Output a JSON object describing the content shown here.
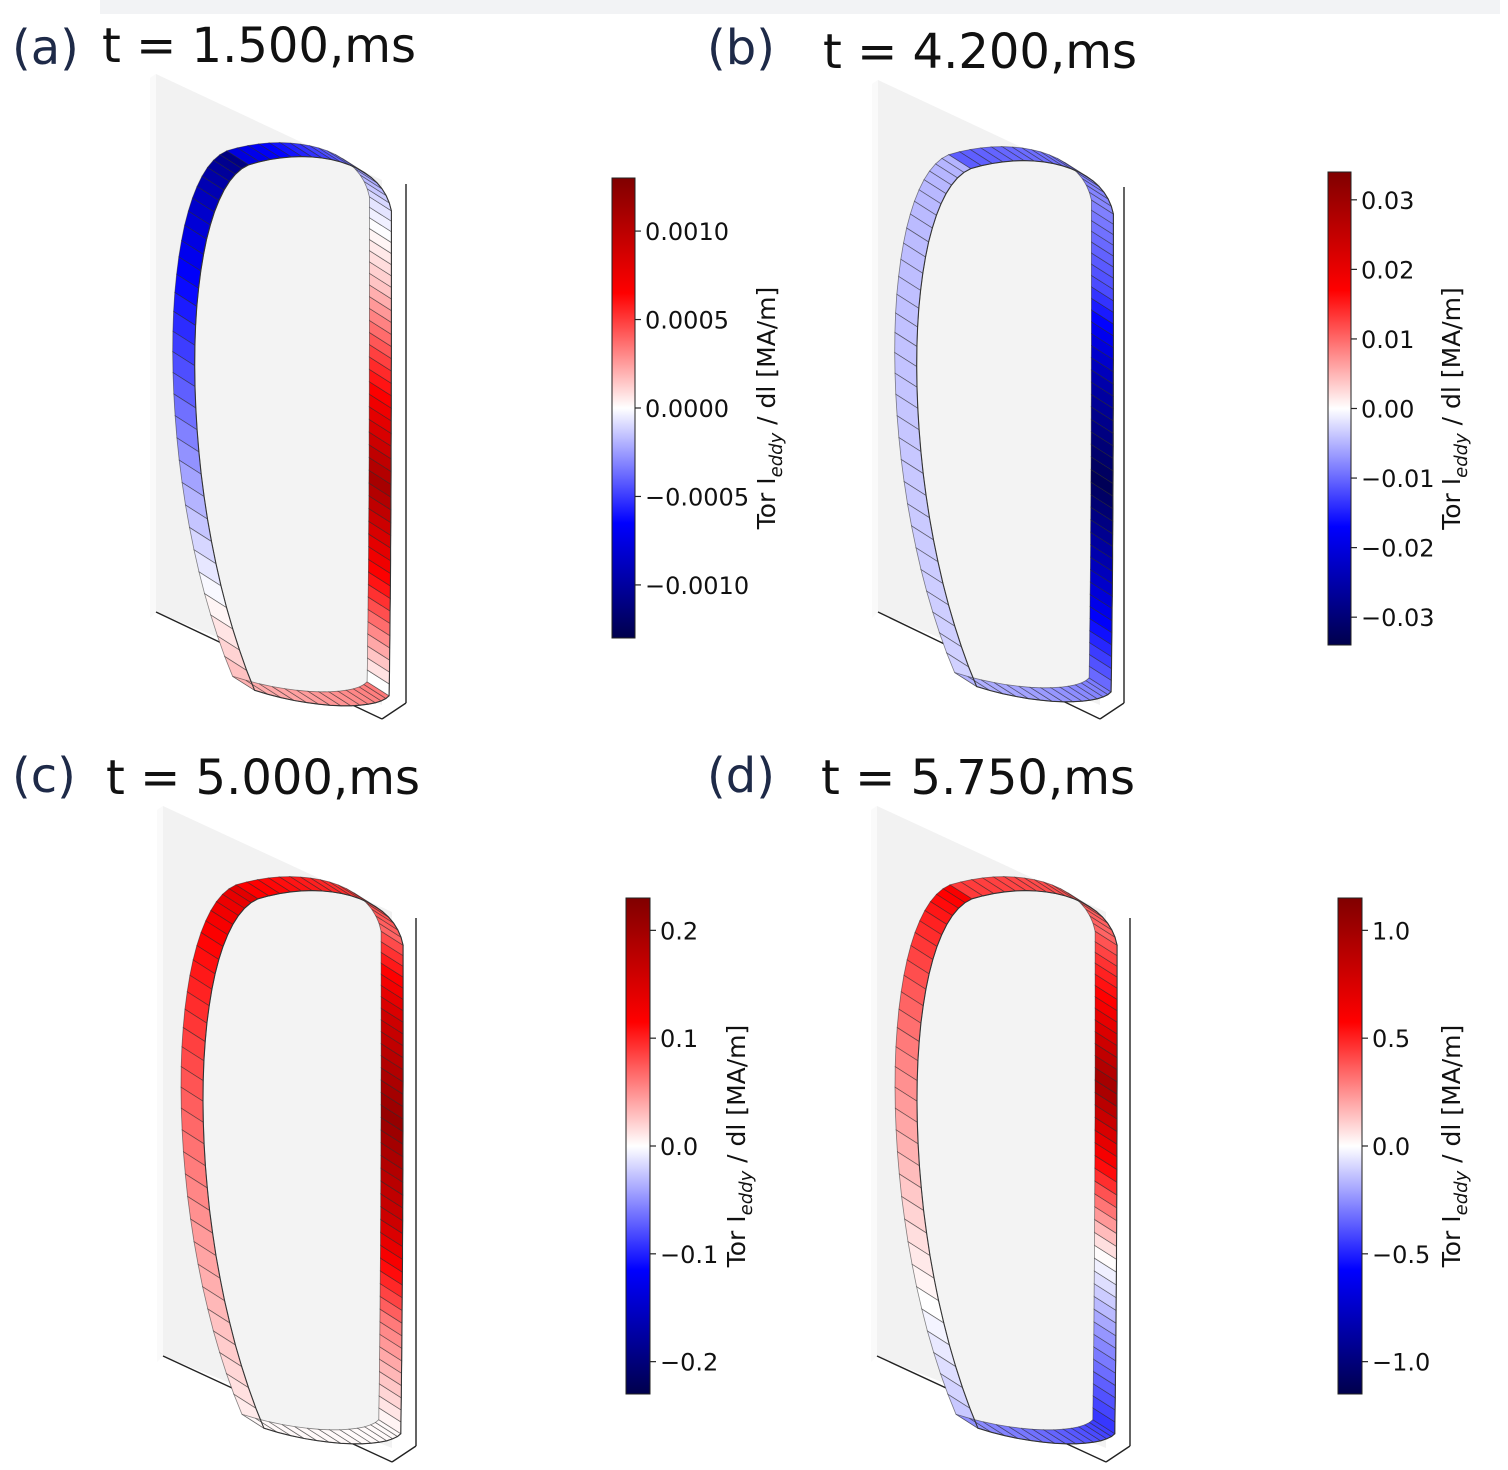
{
  "figure": {
    "panels": [
      {
        "label": "(a)",
        "title": "t = 1.500,ms"
      },
      {
        "label": "(b)",
        "title": "t = 4.200,ms"
      },
      {
        "label": "(c)",
        "title": "t = 5.000,ms"
      },
      {
        "label": "(d)",
        "title": "t = 5.750,ms"
      }
    ]
  },
  "chart_data": [
    {
      "type": "heatmap",
      "panel": "(a)",
      "title": "t = 1.500,ms",
      "colorbar": {
        "label": "Tor I_eddy / dl [MA/m]",
        "label_main": "Tor I",
        "label_sub": "eddy",
        "label_rest": " / dl [MA/m]",
        "cmap": "seismic",
        "range": [
          -0.0013,
          0.0013
        ],
        "ticks": [
          0.001,
          0.0005,
          0.0,
          -0.0005,
          -0.001
        ],
        "tick_labels": [
          "0.0010",
          "0.0005",
          "0.0000",
          "−0.0005",
          "−0.0010"
        ]
      },
      "segments": {
        "inner_wall": {
          "from": -0.0011,
          "to": 0.0002
        },
        "lower_divertor": {
          "from": 0.0002,
          "to": 0.00035
        },
        "outer_wall_bottom_to_top": [
          0.0,
          0.0006,
          0.0011,
          0.0006,
          0.00015,
          -0.0001
        ],
        "top": {
          "from": -0.0001,
          "to": -0.0008
        }
      }
    },
    {
      "type": "heatmap",
      "panel": "(b)",
      "title": "t = 4.200,ms",
      "colorbar": {
        "label": "Tor I_eddy / dl [MA/m]",
        "label_main": "Tor I",
        "label_sub": "eddy",
        "label_rest": " / dl [MA/m]",
        "cmap": "seismic",
        "range": [
          -0.034,
          0.034
        ],
        "ticks": [
          0.03,
          0.02,
          0.01,
          0.0,
          -0.01,
          -0.02,
          -0.03
        ],
        "tick_labels": [
          "0.03",
          "0.02",
          "0.01",
          "0.00",
          "−0.01",
          "−0.02",
          "−0.03"
        ]
      },
      "segments": {
        "inner_wall": {
          "from": -0.005,
          "to": -0.003
        },
        "lower_divertor": {
          "from": -0.005,
          "to": -0.009
        },
        "outer_wall_bottom_to_top": [
          -0.01,
          -0.022,
          -0.033,
          -0.025,
          -0.012,
          -0.008
        ],
        "top": {
          "from": -0.008,
          "to": -0.011
        }
      }
    },
    {
      "type": "heatmap",
      "panel": "(c)",
      "title": "t = 5.000,ms",
      "colorbar": {
        "label": "Tor I_eddy / dl [MA/m]",
        "label_main": "Tor I",
        "label_sub": "eddy",
        "label_rest": " / dl [MA/m]",
        "cmap": "seismic",
        "range": [
          -0.23,
          0.23
        ],
        "ticks": [
          0.2,
          0.1,
          0.0,
          -0.1,
          -0.2
        ],
        "tick_labels": [
          "0.2",
          "0.1",
          "0.0",
          "−0.1",
          "−0.2"
        ]
      },
      "segments": {
        "inner_wall": {
          "from": 0.14,
          "to": 0.005
        },
        "lower_divertor": {
          "from": 0.003,
          "to": 0.002
        },
        "outer_wall_bottom_to_top": [
          0.005,
          0.06,
          0.16,
          0.21,
          0.16,
          0.07
        ],
        "top": {
          "from": 0.07,
          "to": 0.12
        }
      }
    },
    {
      "type": "heatmap",
      "panel": "(d)",
      "title": "t = 5.750,ms",
      "colorbar": {
        "label": "Tor I_eddy / dl [MA/m]",
        "label_main": "Tor I",
        "label_sub": "eddy",
        "label_rest": " / dl [MA/m]",
        "cmap": "seismic",
        "range": [
          -1.15,
          1.15
        ],
        "ticks": [
          1.0,
          0.5,
          0.0,
          -0.5,
          -1.0
        ],
        "tick_labels": [
          "1.0",
          "0.5",
          "0.0",
          "−0.5",
          "−1.0"
        ]
      },
      "segments": {
        "inner_wall": {
          "from": 0.6,
          "to": -0.15
        },
        "lower_divertor": {
          "from": -0.25,
          "to": -0.45
        },
        "outer_wall_bottom_to_top": [
          -0.45,
          -0.25,
          0.02,
          0.55,
          1.0,
          0.6,
          0.35
        ],
        "top": {
          "from": 0.35,
          "to": 0.45
        }
      }
    }
  ]
}
